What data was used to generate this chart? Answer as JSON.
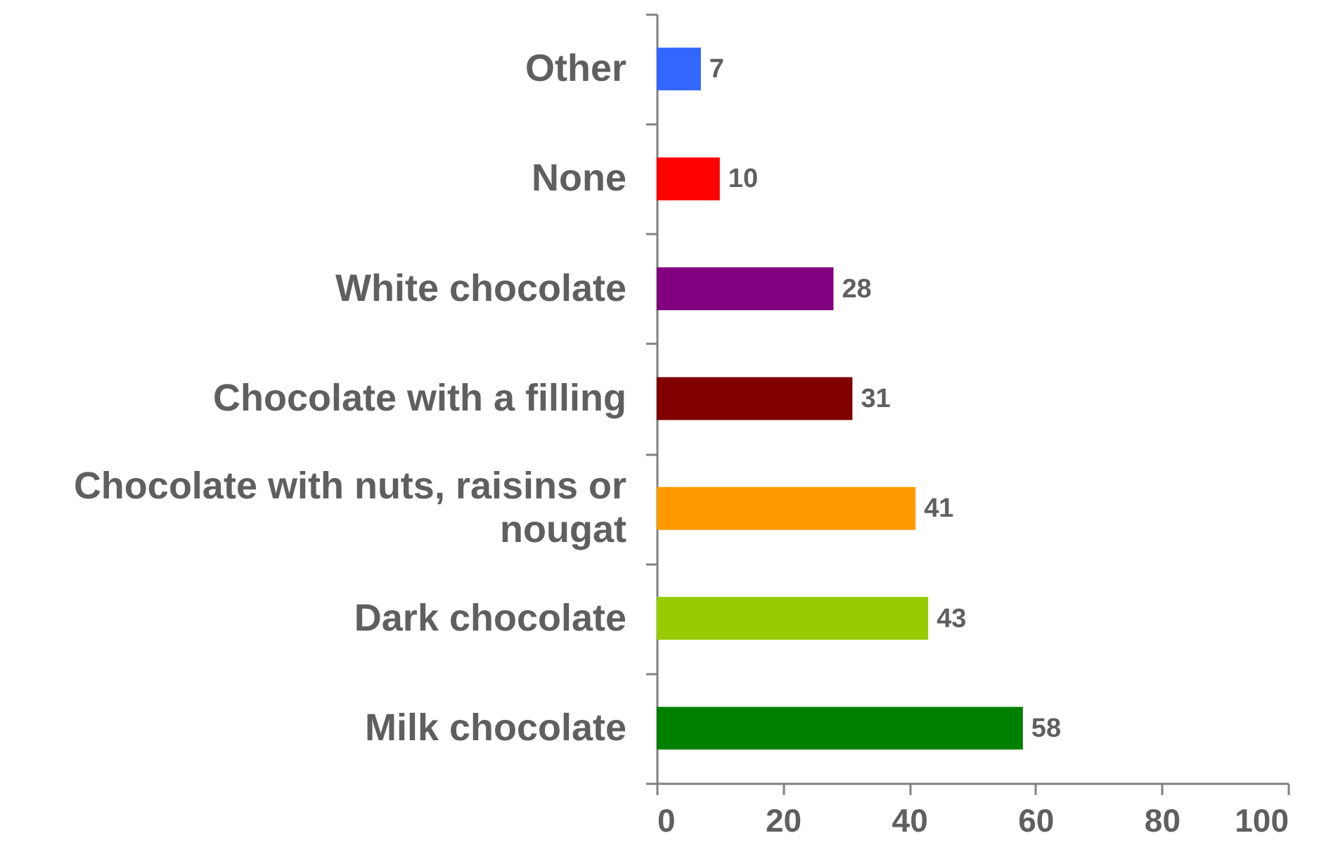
{
  "chart_data": {
    "type": "bar",
    "orientation": "horizontal",
    "categories": [
      "Other",
      "None",
      "White chocolate",
      "Chocolate with a filling",
      "Chocolate with nuts, raisins or nougat",
      "Dark chocolate",
      "Milk chocolate"
    ],
    "values": [
      7,
      10,
      28,
      31,
      41,
      43,
      58
    ],
    "colors": [
      "#3366ff",
      "#ff0000",
      "#800080",
      "#800000",
      "#ff9900",
      "#99cc00",
      "#008000"
    ],
    "xlim": [
      0,
      100
    ],
    "xticks": [
      0,
      20,
      40,
      60,
      80,
      100
    ],
    "data_labels": true
  }
}
